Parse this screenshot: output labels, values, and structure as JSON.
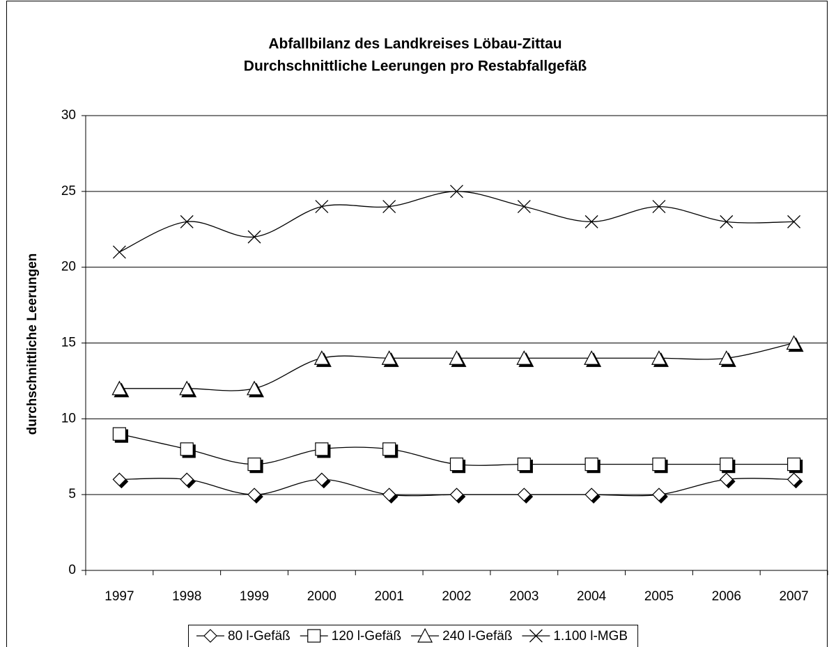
{
  "chart_data": {
    "type": "line",
    "title": "Abfallbilanz des Landkreises Löbau-Zittau",
    "subtitle": "Durchschnittliche Leerungen pro Restabfallgefäß",
    "y_label": "durchschnittliche Leerungen",
    "categories": [
      "1997",
      "1998",
      "1999",
      "2000",
      "2001",
      "2002",
      "2003",
      "2004",
      "2005",
      "2006",
      "2007"
    ],
    "series": [
      {
        "name": "80 l-Gefäß",
        "color": "#000000",
        "marker": "diamond",
        "values": [
          6,
          6,
          5,
          6,
          5,
          5,
          5,
          5,
          5,
          6,
          6
        ]
      },
      {
        "name": "120 l-Gefäß",
        "color": "#000000",
        "marker": "square",
        "values": [
          9,
          8,
          7,
          8,
          8,
          7,
          7,
          7,
          7,
          7,
          7
        ]
      },
      {
        "name": "240 l-Gefäß",
        "color": "#000000",
        "marker": "triangle",
        "values": [
          12,
          12,
          12,
          14,
          14,
          14,
          14,
          14,
          14,
          14,
          15
        ]
      },
      {
        "name": "1.100 l-MGB",
        "color": "#000000",
        "marker": "x",
        "values": [
          21,
          23,
          22,
          24,
          24,
          25,
          24,
          23,
          24,
          23,
          23
        ]
      }
    ],
    "ylim": [
      0,
      30
    ],
    "yticks": [
      0,
      5,
      10,
      15,
      20,
      25,
      30
    ],
    "grid": true,
    "smooth": true,
    "legend": "bottom"
  }
}
